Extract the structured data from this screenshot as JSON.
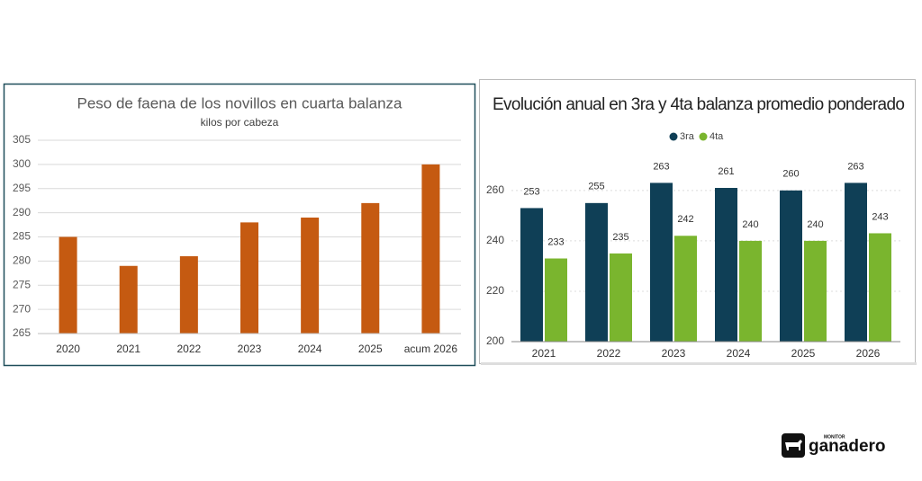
{
  "chart_data": [
    {
      "type": "bar",
      "title": "Peso de faena de los novillos en cuarta balanza",
      "subtitle": "kilos por cabeza",
      "categories": [
        "2020",
        "2021",
        "2022",
        "2023",
        "2024",
        "2025",
        "acum 2026"
      ],
      "values": [
        285,
        279,
        281,
        288,
        289,
        292,
        300
      ],
      "color": "#c55a11",
      "ylim": [
        265,
        305
      ],
      "yticks": [
        265,
        270,
        275,
        280,
        285,
        290,
        295,
        300,
        305
      ],
      "grid": true
    },
    {
      "type": "bar",
      "title": "Evolución anual en 3ra y 4ta balanza promedio ponderado",
      "categories": [
        "2021",
        "2022",
        "2023",
        "2024",
        "2025",
        "2026"
      ],
      "series": [
        {
          "name": "3ra",
          "color": "#0f3f56",
          "values": [
            253,
            255,
            263,
            261,
            260,
            263
          ]
        },
        {
          "name": "4ta",
          "color": "#7ab52e",
          "values": [
            233,
            235,
            242,
            240,
            240,
            243
          ]
        }
      ],
      "ylim": [
        200,
        266
      ],
      "yticks": [
        200,
        220,
        240,
        260
      ],
      "grid": true,
      "legend": "top",
      "data_labels": true
    }
  ],
  "logo": {
    "small": "MONITOR",
    "name": "ganadero"
  }
}
